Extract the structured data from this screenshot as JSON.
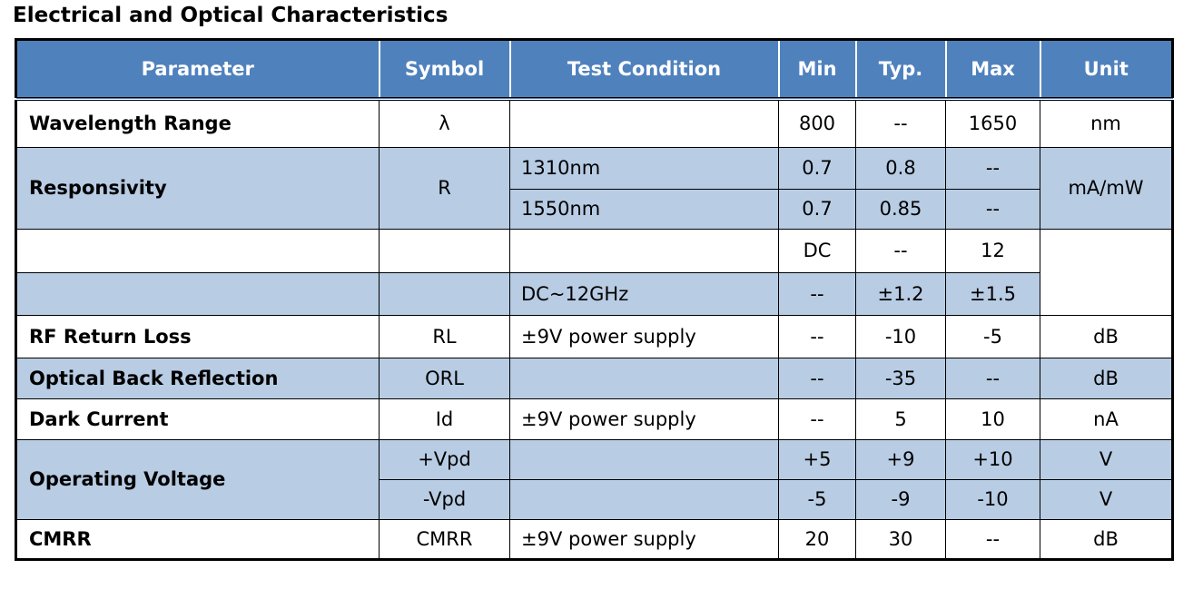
{
  "header": {
    "title": "Electrical and Optical Characteristics"
  },
  "table": {
    "columns": [
      "Parameter",
      "Symbol",
      "Test Condition",
      "Min",
      "Typ.",
      "Max",
      "Unit"
    ],
    "rows": [
      [
        "Wavelength Range",
        "λ",
        "800",
        "--",
        "1650",
        "nm"
      ],
      [
        "Responsivity",
        "R",
        "1310nm",
        "0.7",
        "0.8",
        "--",
        "mA/mW"
      ],
      [
        "1550nm",
        "0.7",
        "0.85",
        "--"
      ],
      [
        "DC",
        "--",
        "12"
      ],
      [
        "DC~12GHz",
        "--",
        "±1.2",
        "±1.5"
      ],
      [
        "RF Return Loss",
        "RL",
        "±9V power supply",
        "--",
        "-10",
        "-5",
        "dB"
      ],
      [
        "Optical Back Reflection",
        "ORL",
        "--",
        "-35",
        "--",
        "dB"
      ],
      [
        "Dark Current",
        "Id",
        "±9V power supply",
        "--",
        "5",
        "10",
        "nA"
      ],
      [
        "Operating Voltage",
        "+Vpd",
        "+5",
        "+9",
        "+10",
        "V"
      ],
      [
        "-Vpd",
        "-5",
        "-9",
        "-10",
        "V"
      ],
      [
        "CMRR",
        "CMRR",
        "±9V power supply",
        "20",
        "30",
        "--",
        "dB"
      ]
    ]
  }
}
